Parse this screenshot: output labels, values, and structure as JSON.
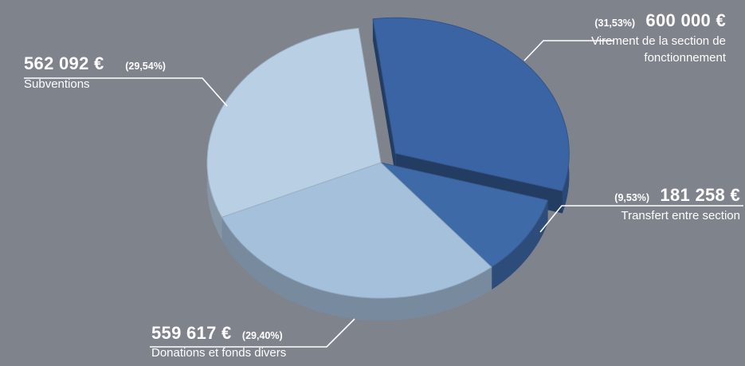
{
  "chart_data": {
    "type": "pie",
    "title": "",
    "slices": [
      {
        "label": "Virement de la section de fonctionnement",
        "amount_text": "600 000 €",
        "value": 600000,
        "percent_text": "(31,53%)",
        "color": "#3a64a4",
        "exploded": true
      },
      {
        "label": "Transfert entre section",
        "amount_text": "181 258 €",
        "value": 181258,
        "percent_text": "(9,53%)",
        "color": "#3e6aa8",
        "exploded": false
      },
      {
        "label": "Donations et fonds divers",
        "amount_text": "559 617 €",
        "value": 559617,
        "percent_text": "(29,40%)",
        "color": "#a5c0db",
        "exploded": false
      },
      {
        "label": "Subventions",
        "amount_text": "562 092 €",
        "value": 562092,
        "percent_text": "(29,54%)",
        "color": "#b9cfe4",
        "exploded": false
      }
    ],
    "legend": "none",
    "background": "#7f838c"
  }
}
